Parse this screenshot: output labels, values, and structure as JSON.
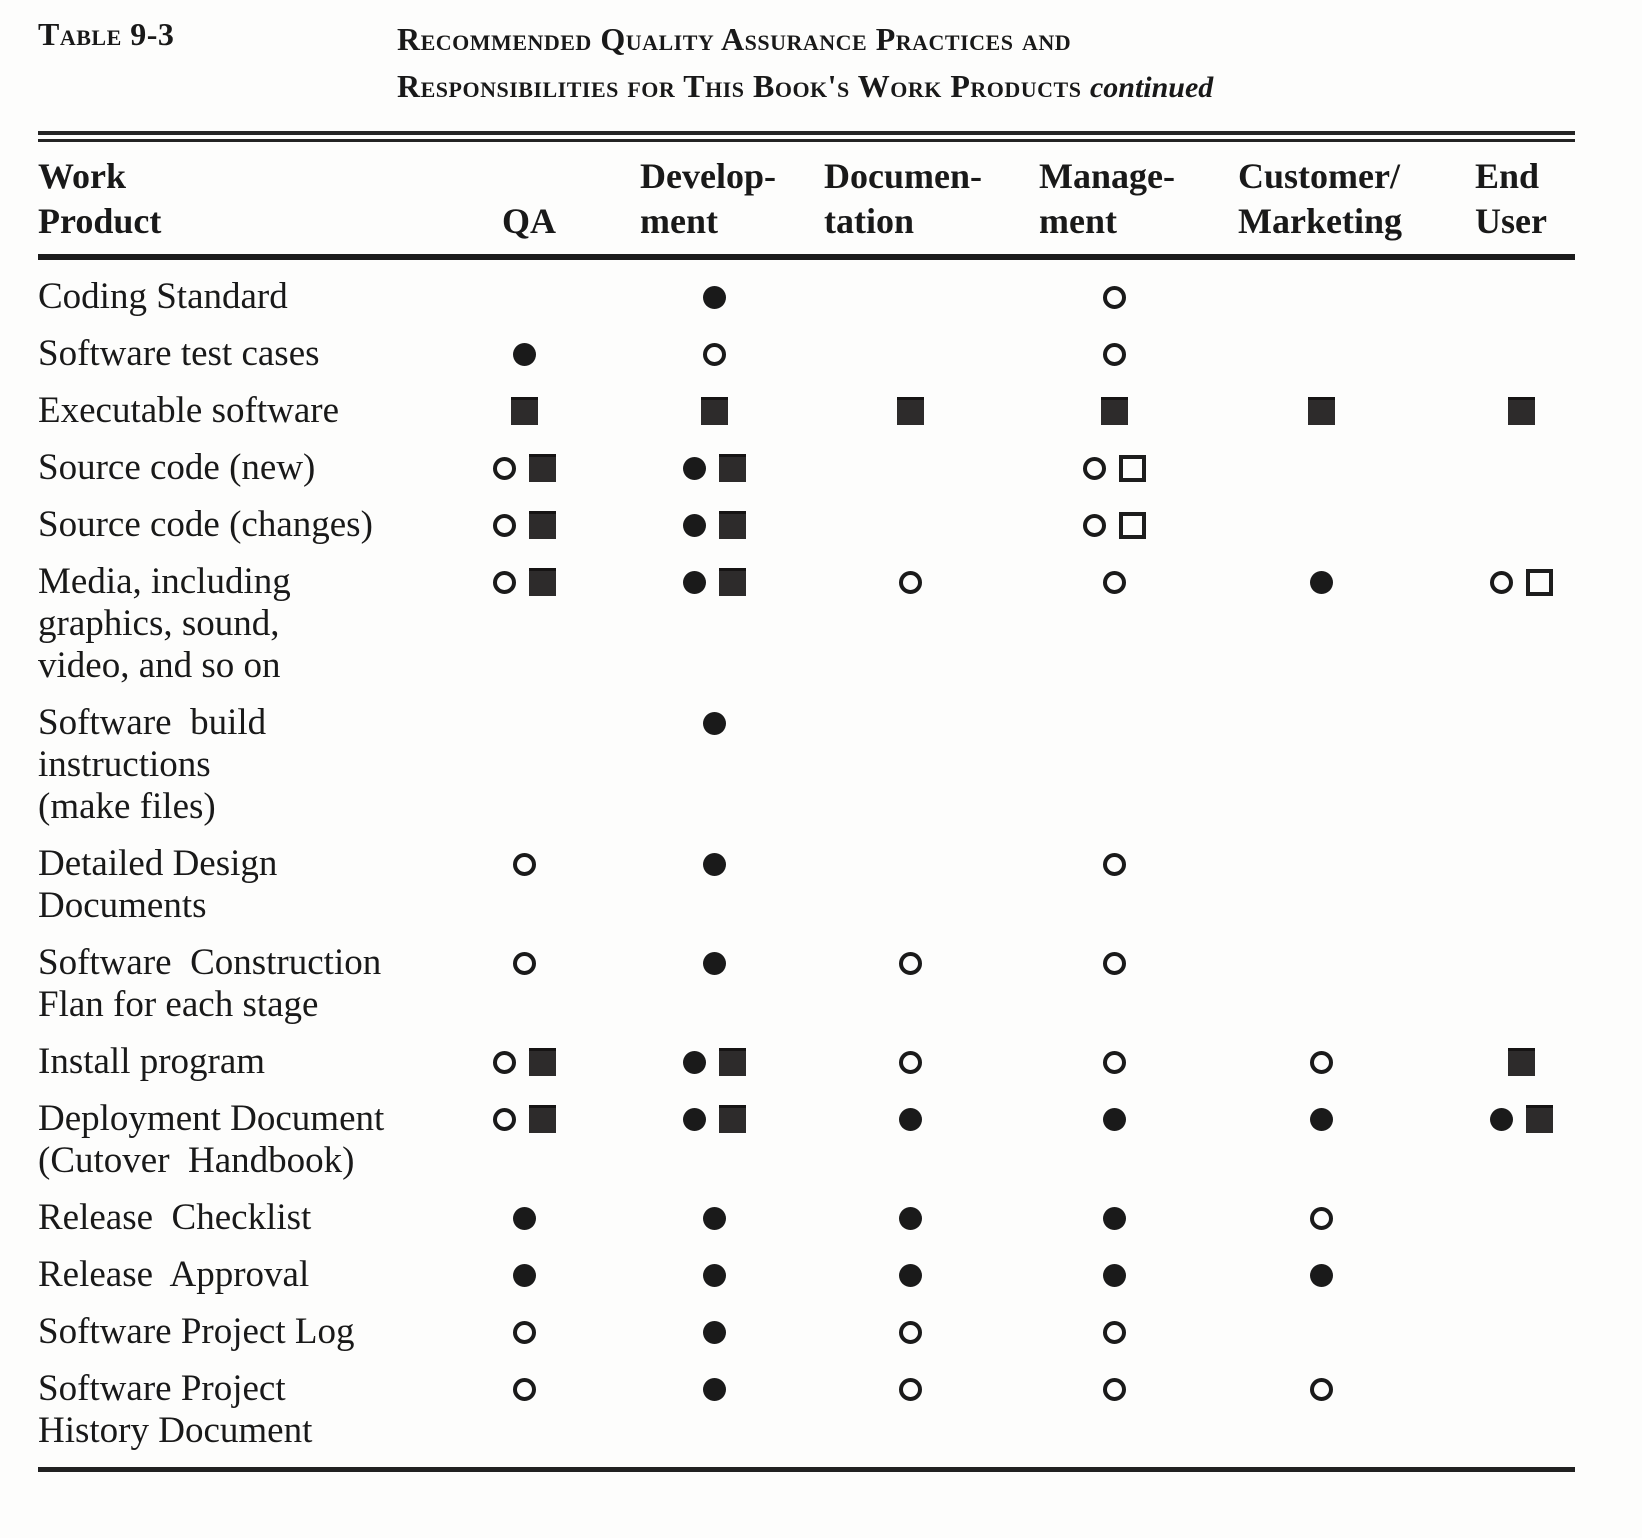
{
  "caption": {
    "table_label": "Table 9-3",
    "title_line1": "Recommended Quality Assurance Practices and",
    "title_line2": "Responsibilities for This Book's Work Products",
    "continued": "continued"
  },
  "colors": {
    "ink": "#1a1a1a",
    "paper": "#fdfdfc",
    "halftone_square": "#2d2b2b"
  },
  "symbols": {
    "filled-circle": "●",
    "open-circle": "○",
    "filled-square": "■",
    "open-square": "□"
  },
  "table": {
    "headers": [
      {
        "id": "work-product",
        "label": "Work\nProduct"
      },
      {
        "id": "qa",
        "label": "QA"
      },
      {
        "id": "development",
        "label": "Develop-\nment"
      },
      {
        "id": "documentation",
        "label": "Documen-\ntation"
      },
      {
        "id": "management",
        "label": "Manage-\nment"
      },
      {
        "id": "customer-marketing",
        "label": "Customer/\nMarketing"
      },
      {
        "id": "end-user",
        "label": "End\nUser"
      }
    ],
    "rows": [
      {
        "label": "Coding Standard",
        "cells": [
          [],
          [
            "filled-circle"
          ],
          [],
          [
            "open-circle"
          ],
          [],
          []
        ]
      },
      {
        "label": "Software test cases",
        "cells": [
          [
            "filled-circle"
          ],
          [
            "open-circle"
          ],
          [],
          [
            "open-circle"
          ],
          [],
          []
        ]
      },
      {
        "label": "Executable software",
        "cells": [
          [
            "filled-square"
          ],
          [
            "filled-square"
          ],
          [
            "filled-square"
          ],
          [
            "filled-square"
          ],
          [
            "filled-square"
          ],
          [
            "filled-square"
          ]
        ]
      },
      {
        "label": "Source code (new)",
        "cells": [
          [
            "open-circle",
            "filled-square"
          ],
          [
            "filled-circle",
            "filled-square"
          ],
          [],
          [
            "open-circle",
            "open-square"
          ],
          [],
          []
        ]
      },
      {
        "label": "Source code (changes)",
        "cells": [
          [
            "open-circle",
            "filled-square"
          ],
          [
            "filled-circle",
            "filled-square"
          ],
          [],
          [
            "open-circle",
            "open-square"
          ],
          [],
          []
        ]
      },
      {
        "label": "Media, including\ngraphics, sound,\nvideo, and so on",
        "cells": [
          [
            "open-circle",
            "filled-square"
          ],
          [
            "filled-circle",
            "filled-square"
          ],
          [
            "open-circle"
          ],
          [
            "open-circle"
          ],
          [
            "filled-circle"
          ],
          [
            "open-circle",
            "open-square"
          ]
        ]
      },
      {
        "label": "Software  build\ninstructions\n(make files)",
        "cells": [
          [],
          [
            "filled-circle"
          ],
          [],
          [],
          [],
          []
        ]
      },
      {
        "label": "Detailed Design\nDocuments",
        "cells": [
          [
            "open-circle"
          ],
          [
            "filled-circle"
          ],
          [],
          [
            "open-circle"
          ],
          [],
          []
        ]
      },
      {
        "label": "Software  Construction\nFlan for each stage",
        "cells": [
          [
            "open-circle"
          ],
          [
            "filled-circle"
          ],
          [
            "open-circle"
          ],
          [
            "open-circle"
          ],
          [],
          []
        ]
      },
      {
        "label": "Install program",
        "cells": [
          [
            "open-circle",
            "filled-square"
          ],
          [
            "filled-circle",
            "filled-square"
          ],
          [
            "open-circle"
          ],
          [
            "open-circle"
          ],
          [
            "open-circle"
          ],
          [
            "filled-square"
          ]
        ]
      },
      {
        "label": "Deployment Document\n(Cutover  Handbook)",
        "cells": [
          [
            "open-circle",
            "filled-square"
          ],
          [
            "filled-circle",
            "filled-square"
          ],
          [
            "filled-circle"
          ],
          [
            "filled-circle"
          ],
          [
            "filled-circle"
          ],
          [
            "filled-circle",
            "filled-square"
          ]
        ]
      },
      {
        "label": "Release  Checklist",
        "cells": [
          [
            "filled-circle"
          ],
          [
            "filled-circle"
          ],
          [
            "filled-circle"
          ],
          [
            "filled-circle"
          ],
          [
            "open-circle"
          ],
          []
        ]
      },
      {
        "label": "Release  Approval",
        "cells": [
          [
            "filled-circle"
          ],
          [
            "filled-circle"
          ],
          [
            "filled-circle"
          ],
          [
            "filled-circle"
          ],
          [
            "filled-circle"
          ],
          []
        ]
      },
      {
        "label": "Software Project Log",
        "cells": [
          [
            "open-circle"
          ],
          [
            "filled-circle"
          ],
          [
            "open-circle"
          ],
          [
            "open-circle"
          ],
          [],
          []
        ]
      },
      {
        "label": "Software Project\nHistory Document",
        "cells": [
          [
            "open-circle"
          ],
          [
            "filled-circle"
          ],
          [
            "open-circle"
          ],
          [
            "open-circle"
          ],
          [
            "open-circle"
          ],
          []
        ]
      }
    ]
  }
}
